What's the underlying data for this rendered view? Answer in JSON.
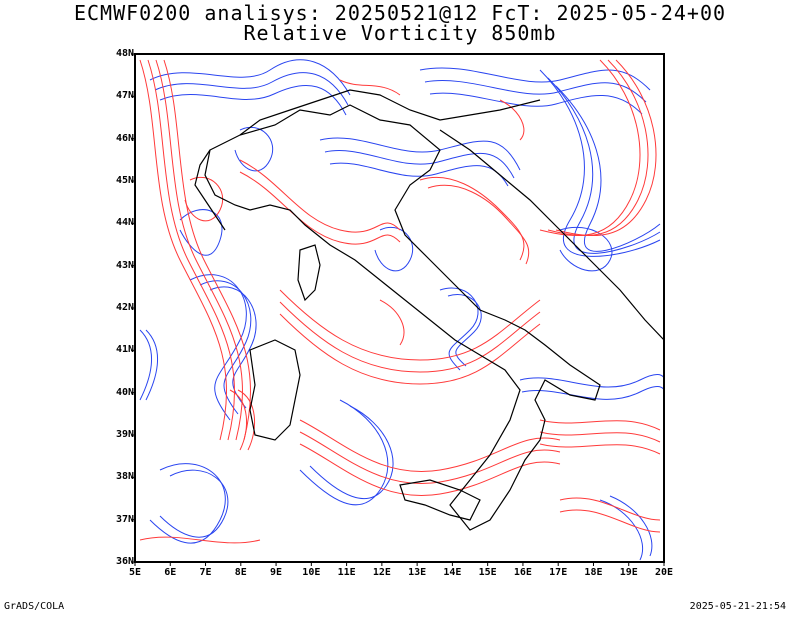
{
  "title": {
    "line1": "ECMWF0200 analisys: 20250521@12 FcT: 2025-05-24+00",
    "line2": "Relative Vorticity 850mb"
  },
  "footer": {
    "left": "GrADS/COLA",
    "right": "2025-05-21-21:54"
  },
  "map": {
    "lat_ticks": [
      "48N",
      "47N",
      "46N",
      "45N",
      "44N",
      "43N",
      "42N",
      "41N",
      "40N",
      "39N",
      "38N",
      "37N",
      "36N"
    ],
    "lon_ticks": [
      "5E",
      "6E",
      "7E",
      "8E",
      "9E",
      "10E",
      "11E",
      "12E",
      "13E",
      "14E",
      "15E",
      "16E",
      "17E",
      "18E",
      "19E",
      "20E"
    ],
    "lat_range": [
      36,
      48
    ],
    "lon_range": [
      5,
      20
    ],
    "colors": {
      "positive": "#ff3a3a",
      "negative": "#2a45f0",
      "coast": "#000000",
      "frame": "#000000"
    }
  }
}
